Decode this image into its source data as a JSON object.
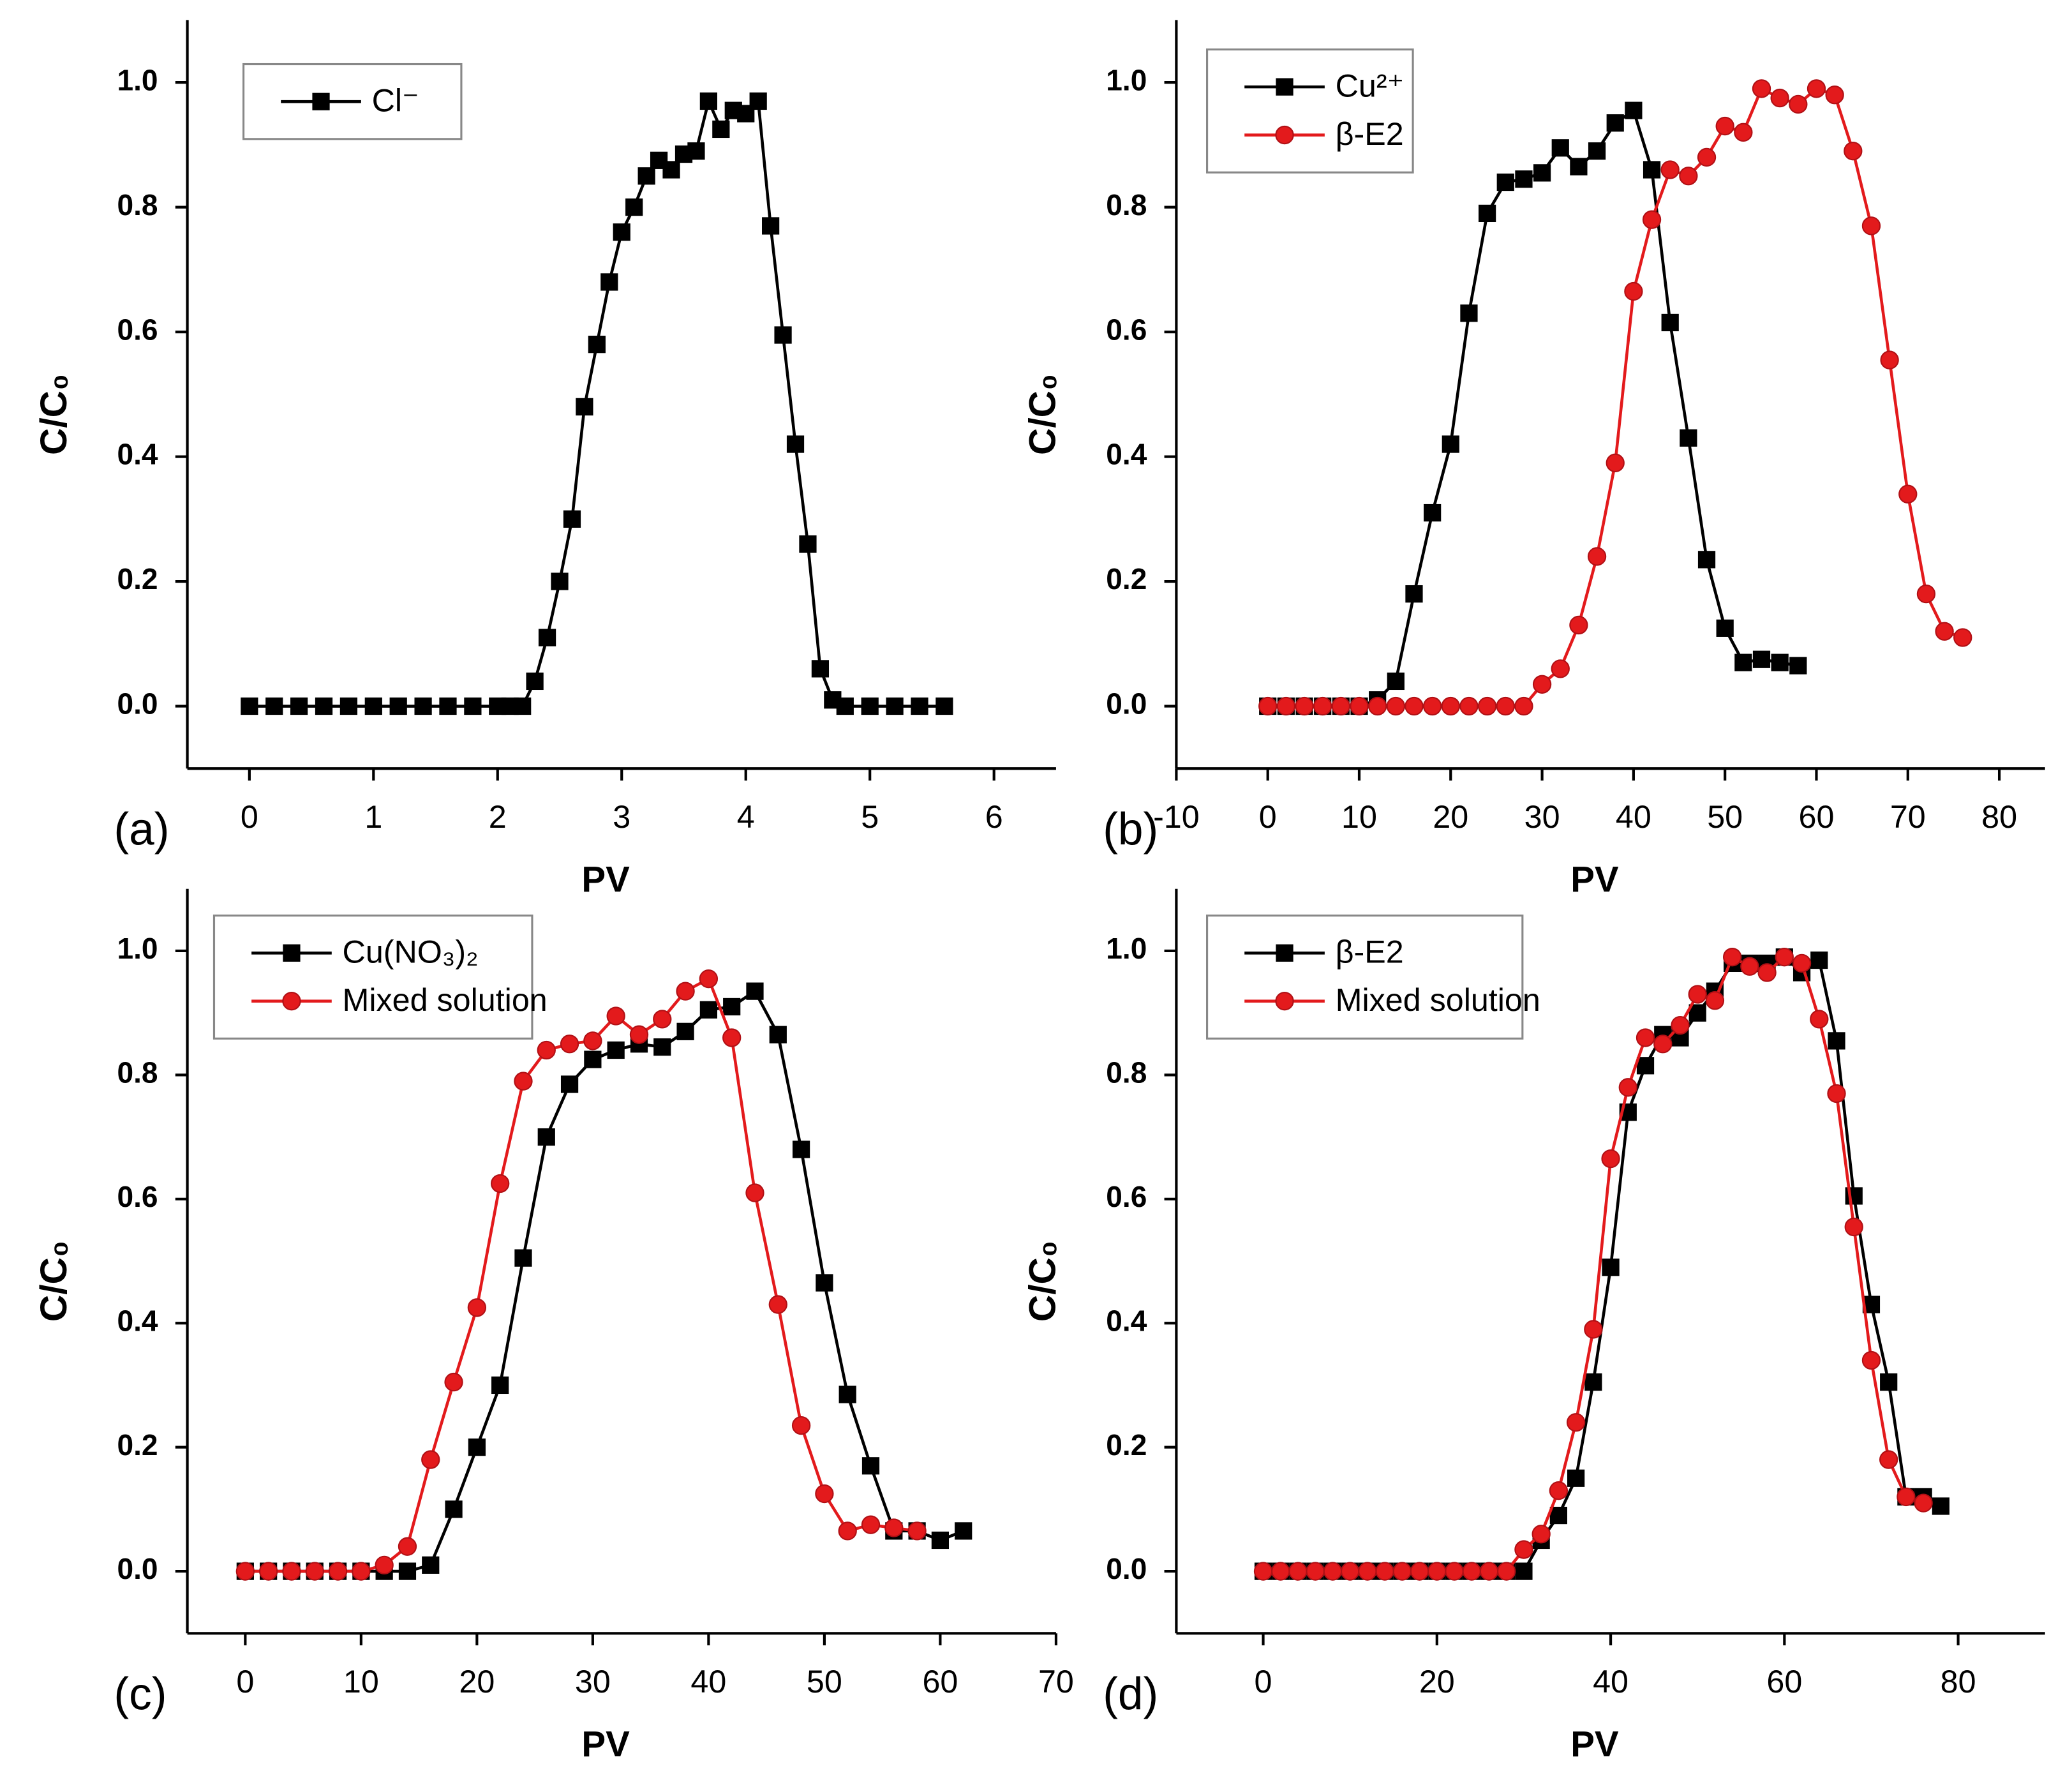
{
  "chart_data": [
    {
      "type": "line",
      "panel_label": "(a)",
      "x_label": "PV",
      "y_label": "C/C₀",
      "xlim": [
        -0.5,
        6.5
      ],
      "xticks": [
        0,
        1,
        2,
        3,
        4,
        5,
        6
      ],
      "ylim": [
        -0.1,
        1.1
      ],
      "yticks": [
        {
          "value": 0,
          "label": "0.0"
        },
        {
          "value": 0.2,
          "label": "0.2"
        },
        {
          "value": 0.4,
          "label": "0.4"
        },
        {
          "value": 0.6,
          "label": "0.6"
        },
        {
          "value": 0.8,
          "label": "0.8"
        },
        {
          "value": 1,
          "label": "1.0"
        }
      ],
      "legend": "upper left",
      "series": [
        {
          "name": "Cl⁻",
          "color": "#000000",
          "marker": "square",
          "x": [
            0,
            0.2,
            0.4,
            0.6,
            0.8,
            1.0,
            1.2,
            1.4,
            1.6,
            1.8,
            2.0,
            2.1,
            2.2,
            2.3,
            2.4,
            2.5,
            2.6,
            2.7,
            2.8,
            2.9,
            3.0,
            3.1,
            3.2,
            3.3,
            3.4,
            3.5,
            3.6,
            3.7,
            3.8,
            3.9,
            4.0,
            4.1,
            4.2,
            4.3,
            4.4,
            4.5,
            4.6,
            4.7,
            4.8,
            5.0,
            5.2,
            5.4,
            5.6
          ],
          "values": [
            0,
            0,
            0,
            0,
            0,
            0,
            0,
            0,
            0,
            0,
            0,
            0,
            0,
            0.04,
            0.11,
            0.2,
            0.3,
            0.48,
            0.58,
            0.68,
            0.76,
            0.8,
            0.85,
            0.875,
            0.86,
            0.885,
            0.89,
            0.97,
            0.925,
            0.955,
            0.95,
            0.97,
            0.77,
            0.595,
            0.42,
            0.26,
            0.06,
            0.01,
            0,
            0,
            0,
            0,
            0
          ]
        }
      ]
    },
    {
      "type": "line",
      "panel_label": "(b)",
      "x_label": "PV",
      "y_label": "C/C₀",
      "xlim": [
        -10,
        85
      ],
      "xticks": [
        -10,
        0,
        10,
        20,
        30,
        40,
        50,
        60,
        70,
        80
      ],
      "ylim": [
        -0.1,
        1.1
      ],
      "yticks": [
        {
          "value": 0,
          "label": "0.0"
        },
        {
          "value": 0.2,
          "label": "0.2"
        },
        {
          "value": 0.4,
          "label": "0.4"
        },
        {
          "value": 0.6,
          "label": "0.6"
        },
        {
          "value": 0.8,
          "label": "0.8"
        },
        {
          "value": 1,
          "label": "1.0"
        }
      ],
      "legend": "upper left",
      "series": [
        {
          "name": "Cu²⁺",
          "color": "#000000",
          "marker": "square",
          "x": [
            0,
            2,
            4,
            6,
            8,
            10,
            12,
            14,
            16,
            18,
            20,
            22,
            24,
            26,
            28,
            30,
            32,
            34,
            36,
            38,
            40,
            42,
            44,
            46,
            48,
            50,
            52,
            54,
            56,
            58
          ],
          "values": [
            0,
            0,
            0,
            0,
            0,
            0,
            0.01,
            0.04,
            0.18,
            0.31,
            0.42,
            0.63,
            0.79,
            0.84,
            0.845,
            0.855,
            0.895,
            0.865,
            0.89,
            0.935,
            0.955,
            0.86,
            0.615,
            0.43,
            0.235,
            0.125,
            0.07,
            0.075,
            0.07,
            0.065
          ]
        },
        {
          "name": "β-E2",
          "color": "#e31a1c",
          "marker": "circle",
          "x": [
            0,
            2,
            4,
            6,
            8,
            10,
            12,
            14,
            16,
            18,
            20,
            22,
            24,
            26,
            28,
            30,
            32,
            34,
            36,
            38,
            40,
            42,
            44,
            46,
            48,
            50,
            52,
            54,
            56,
            58,
            60,
            62,
            64,
            66,
            68,
            70,
            72,
            74,
            76
          ],
          "values": [
            0,
            0,
            0,
            0,
            0,
            0,
            0,
            0,
            0,
            0,
            0,
            0,
            0,
            0,
            0,
            0.035,
            0.06,
            0.13,
            0.24,
            0.39,
            0.665,
            0.78,
            0.86,
            0.85,
            0.88,
            0.93,
            0.92,
            0.99,
            0.975,
            0.965,
            0.99,
            0.98,
            0.89,
            0.77,
            0.555,
            0.34,
            0.18,
            0.12,
            0.11
          ]
        }
      ]
    },
    {
      "type": "line",
      "panel_label": "(c)",
      "x_label": "PV",
      "y_label": "C/C₀",
      "xlim": [
        -5,
        70
      ],
      "xticks": [
        0,
        10,
        20,
        30,
        40,
        50,
        60,
        70
      ],
      "ylim": [
        -0.1,
        1.1
      ],
      "yticks": [
        {
          "value": 0,
          "label": "0.0"
        },
        {
          "value": 0.2,
          "label": "0.2"
        },
        {
          "value": 0.4,
          "label": "0.4"
        },
        {
          "value": 0.6,
          "label": "0.6"
        },
        {
          "value": 0.8,
          "label": "0.8"
        },
        {
          "value": 1,
          "label": "1.0"
        }
      ],
      "legend": "upper left",
      "series": [
        {
          "name": "Cu(NO₃)₂",
          "color": "#000000",
          "marker": "square",
          "x": [
            0,
            2,
            4,
            6,
            8,
            10,
            12,
            14,
            16,
            18,
            20,
            22,
            24,
            26,
            28,
            30,
            32,
            34,
            36,
            38,
            40,
            42,
            44,
            46,
            48,
            50,
            52,
            54,
            56,
            58,
            60,
            62
          ],
          "values": [
            0,
            0,
            0,
            0,
            0,
            0,
            0,
            0,
            0.01,
            0.1,
            0.2,
            0.3,
            0.505,
            0.7,
            0.785,
            0.825,
            0.84,
            0.85,
            0.845,
            0.87,
            0.905,
            0.91,
            0.935,
            0.865,
            0.68,
            0.465,
            0.285,
            0.17,
            0.065,
            0.065,
            0.05,
            0.065
          ]
        },
        {
          "name": "Mixed solution",
          "color": "#e31a1c",
          "marker": "circle",
          "x": [
            0,
            2,
            4,
            6,
            8,
            10,
            12,
            14,
            16,
            18,
            20,
            22,
            24,
            26,
            28,
            30,
            32,
            34,
            36,
            38,
            40,
            42,
            44,
            46,
            48,
            50,
            52,
            54,
            56,
            58
          ],
          "values": [
            0,
            0,
            0,
            0,
            0,
            0,
            0.01,
            0.04,
            0.18,
            0.305,
            0.425,
            0.625,
            0.79,
            0.84,
            0.85,
            0.855,
            0.895,
            0.865,
            0.89,
            0.935,
            0.955,
            0.86,
            0.61,
            0.43,
            0.235,
            0.125,
            0.065,
            0.075,
            0.07,
            0.065
          ]
        }
      ]
    },
    {
      "type": "line",
      "panel_label": "(d)",
      "x_label": "PV",
      "y_label": "C/C₀",
      "xlim": [
        -10,
        90
      ],
      "xticks": [
        0,
        20,
        40,
        60,
        80
      ],
      "ylim": [
        -0.1,
        1.1
      ],
      "yticks": [
        {
          "value": 0,
          "label": "0.0"
        },
        {
          "value": 0.2,
          "label": "0.2"
        },
        {
          "value": 0.4,
          "label": "0.4"
        },
        {
          "value": 0.6,
          "label": "0.6"
        },
        {
          "value": 0.8,
          "label": "0.8"
        },
        {
          "value": 1,
          "label": "1.0"
        }
      ],
      "legend": "upper left",
      "series": [
        {
          "name": "β-E2",
          "color": "#000000",
          "marker": "square",
          "x": [
            0,
            2,
            4,
            6,
            8,
            10,
            12,
            14,
            16,
            18,
            20,
            22,
            24,
            26,
            28,
            30,
            32,
            34,
            36,
            38,
            40,
            42,
            44,
            46,
            48,
            50,
            52,
            54,
            56,
            58,
            60,
            62,
            64,
            66,
            68,
            70,
            72,
            74,
            76,
            78
          ],
          "values": [
            0,
            0,
            0,
            0,
            0,
            0,
            0,
            0,
            0,
            0,
            0,
            0,
            0,
            0,
            0,
            0,
            0.05,
            0.09,
            0.15,
            0.305,
            0.49,
            0.74,
            0.815,
            0.865,
            0.86,
            0.9,
            0.935,
            0.98,
            0.98,
            0.98,
            0.99,
            0.965,
            0.985,
            0.855,
            0.605,
            0.43,
            0.305,
            0.12,
            0.12,
            0.105
          ]
        },
        {
          "name": "Mixed solution",
          "color": "#e31a1c",
          "marker": "circle",
          "x": [
            0,
            2,
            4,
            6,
            8,
            10,
            12,
            14,
            16,
            18,
            20,
            22,
            24,
            26,
            28,
            30,
            32,
            34,
            36,
            38,
            40,
            42,
            44,
            46,
            48,
            50,
            52,
            54,
            56,
            58,
            60,
            62,
            64,
            66,
            68,
            70,
            72,
            74,
            76
          ],
          "values": [
            0,
            0,
            0,
            0,
            0,
            0,
            0,
            0,
            0,
            0,
            0,
            0,
            0,
            0,
            0,
            0.035,
            0.06,
            0.13,
            0.24,
            0.39,
            0.665,
            0.78,
            0.86,
            0.85,
            0.88,
            0.93,
            0.92,
            0.99,
            0.975,
            0.965,
            0.99,
            0.98,
            0.89,
            0.77,
            0.555,
            0.34,
            0.18,
            0.12,
            0.11
          ]
        }
      ]
    }
  ]
}
